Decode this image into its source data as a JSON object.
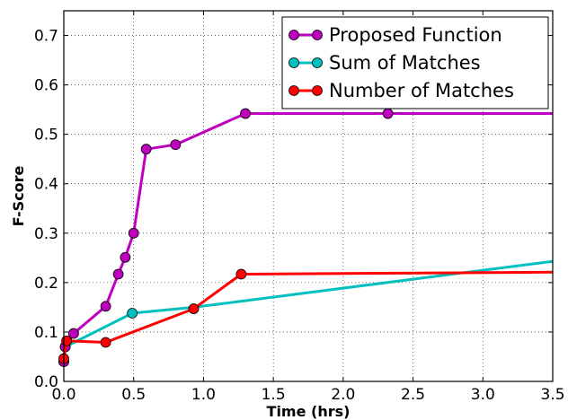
{
  "chart_data": {
    "type": "line",
    "xlabel": "Time (hrs)",
    "ylabel": "F-Score",
    "xlim": [
      0.0,
      3.5
    ],
    "ylim": [
      0.0,
      0.75
    ],
    "xticks": [
      "0.0",
      "0.5",
      "1.0",
      "1.5",
      "2.0",
      "2.5",
      "3.0",
      "3.5"
    ],
    "yticks": [
      "0.0",
      "0.1",
      "0.2",
      "0.3",
      "0.4",
      "0.5",
      "0.6",
      "0.7"
    ],
    "grid": true,
    "legend_position": "top-right",
    "series": [
      {
        "name": "Proposed Function",
        "color": "#bf00bf",
        "x": [
          0.0,
          0.01,
          0.07,
          0.3,
          0.39,
          0.44,
          0.5,
          0.59,
          0.8,
          1.3,
          2.32,
          3.5
        ],
        "y": [
          0.04,
          0.07,
          0.097,
          0.152,
          0.217,
          0.251,
          0.3,
          0.47,
          0.479,
          0.542,
          0.542,
          0.542
        ],
        "markers": [
          true,
          true,
          true,
          true,
          true,
          true,
          true,
          true,
          true,
          true,
          true,
          false
        ]
      },
      {
        "name": "Sum of Matches",
        "color": "#00bfbf",
        "x": [
          0.0,
          0.01,
          0.49,
          0.93,
          3.5
        ],
        "y": [
          0.04,
          0.07,
          0.138,
          0.15,
          0.243
        ],
        "markers": [
          true,
          true,
          true,
          false,
          false
        ]
      },
      {
        "name": "Number of Matches",
        "color": "#ff0000",
        "x": [
          0.0,
          0.02,
          0.3,
          0.93,
          1.27,
          3.5
        ],
        "y": [
          0.046,
          0.082,
          0.079,
          0.147,
          0.217,
          0.221
        ],
        "markers": [
          true,
          true,
          true,
          true,
          true,
          false
        ]
      }
    ]
  }
}
